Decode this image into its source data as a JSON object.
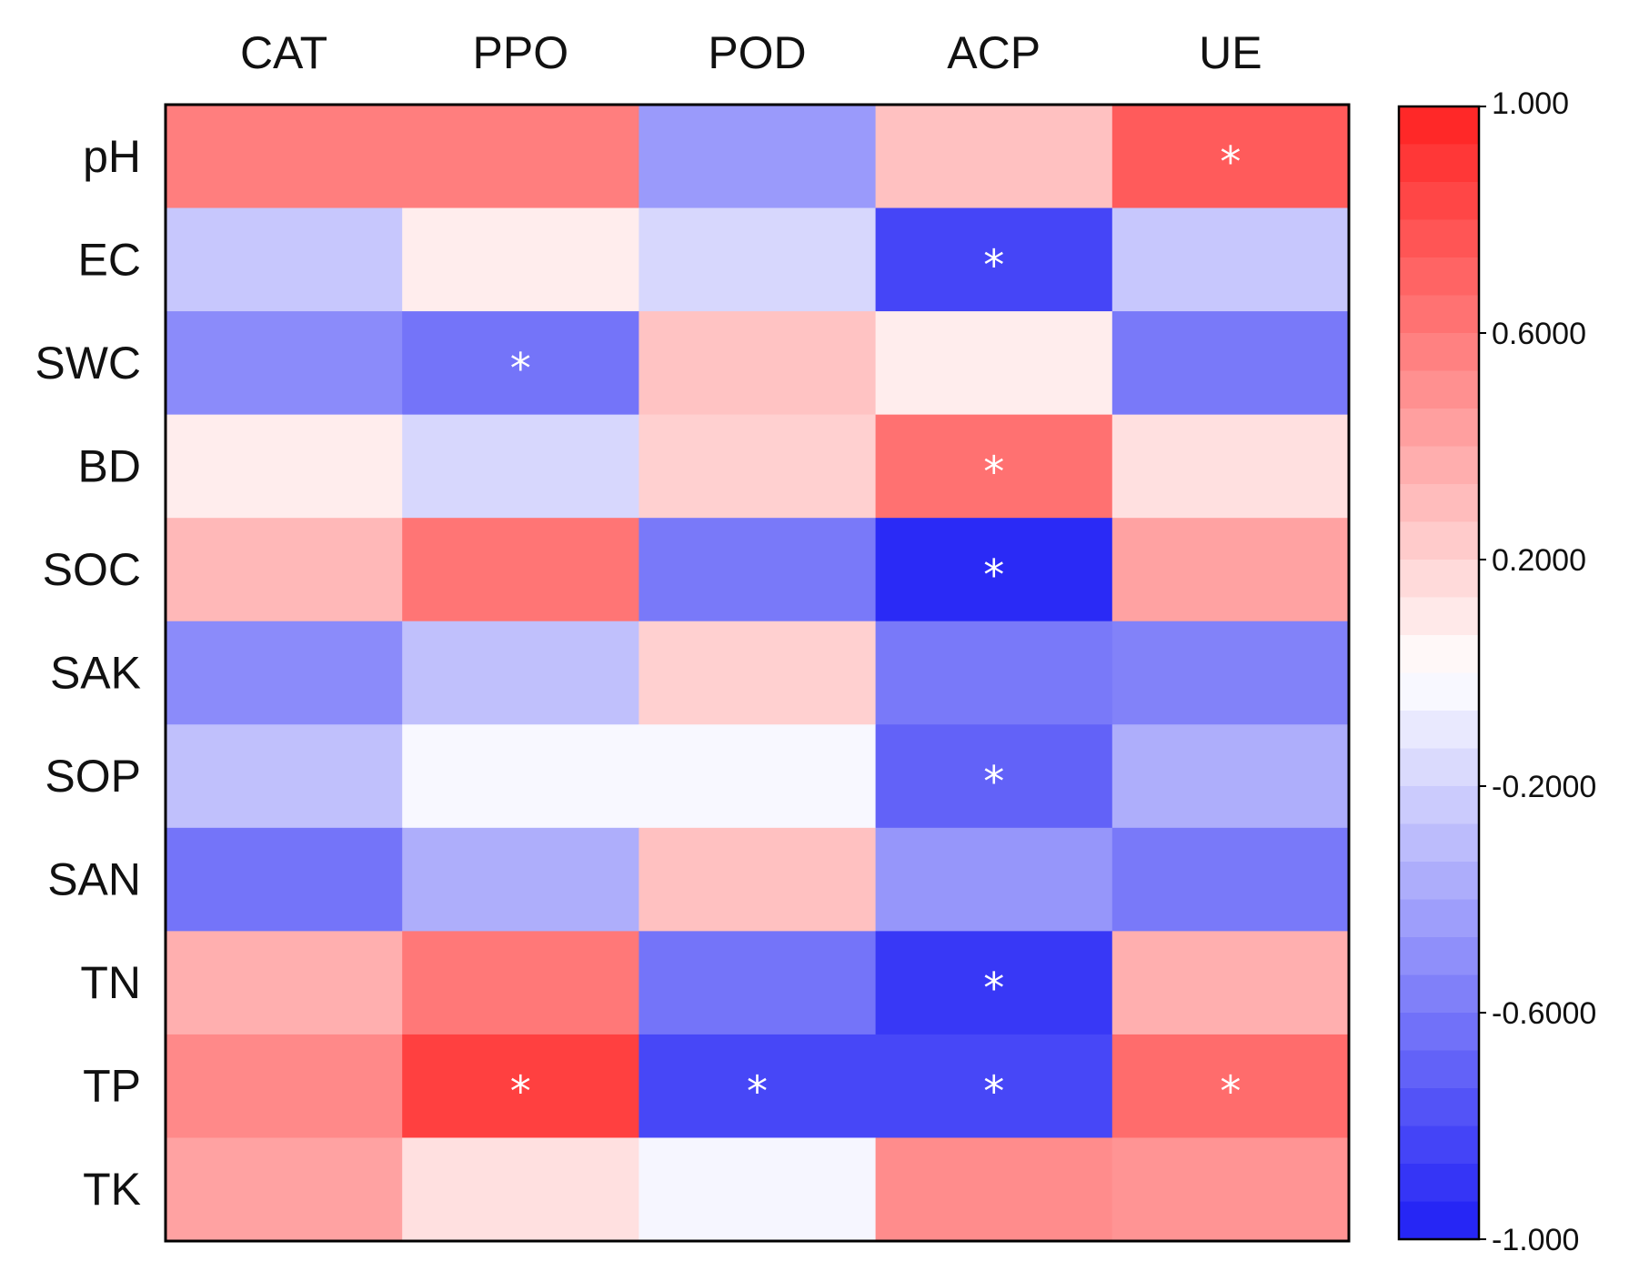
{
  "chart_data": {
    "type": "heatmap",
    "columns": [
      "CAT",
      "PPO",
      "POD",
      "ACP",
      "UE"
    ],
    "rows": [
      "pH",
      "EC",
      "SWC",
      "BD",
      "SOC",
      "SAK",
      "SOP",
      "SAN",
      "TN",
      "TP",
      "TK"
    ],
    "values": [
      [
        0.58,
        0.58,
        -0.45,
        0.28,
        0.74
      ],
      [
        -0.25,
        0.08,
        -0.18,
        -0.83,
        -0.25
      ],
      [
        -0.52,
        -0.62,
        0.27,
        0.08,
        -0.6
      ],
      [
        0.08,
        -0.18,
        0.21,
        0.64,
        0.14
      ],
      [
        0.32,
        0.62,
        -0.6,
        -0.95,
        0.42
      ],
      [
        -0.52,
        -0.28,
        0.21,
        -0.6,
        -0.56
      ],
      [
        -0.28,
        -0.03,
        -0.03,
        -0.7,
        -0.36
      ],
      [
        -0.62,
        -0.36,
        0.28,
        -0.47,
        -0.6
      ],
      [
        0.36,
        0.61,
        -0.62,
        -0.89,
        0.36
      ],
      [
        0.53,
        0.86,
        -0.82,
        -0.82,
        0.66
      ],
      [
        0.42,
        0.14,
        -0.04,
        0.52,
        0.48
      ]
    ],
    "significance": [
      [
        false,
        false,
        false,
        false,
        true
      ],
      [
        false,
        false,
        false,
        true,
        false
      ],
      [
        false,
        true,
        false,
        false,
        false
      ],
      [
        false,
        false,
        false,
        true,
        false
      ],
      [
        false,
        false,
        false,
        true,
        false
      ],
      [
        false,
        false,
        false,
        false,
        false
      ],
      [
        false,
        false,
        false,
        true,
        false
      ],
      [
        false,
        false,
        false,
        false,
        false
      ],
      [
        false,
        false,
        false,
        true,
        false
      ],
      [
        false,
        true,
        true,
        true,
        true
      ],
      [
        false,
        false,
        false,
        false,
        false
      ]
    ],
    "significance_marker": "*",
    "colorbar": {
      "min": -1.0,
      "max": 1.0,
      "ticks": [
        {
          "value": 1.0,
          "label": "1.000"
        },
        {
          "value": 0.6,
          "label": "0.6000"
        },
        {
          "value": 0.2,
          "label": "0.2000"
        },
        {
          "value": -0.2,
          "label": "-0.2000"
        },
        {
          "value": -0.6,
          "label": "-0.6000"
        },
        {
          "value": -1.0,
          "label": "-1.000"
        }
      ],
      "colors": {
        "negative": "#1f1ff5",
        "neutral": "#ffffff",
        "positive": "#ff2121"
      }
    }
  }
}
